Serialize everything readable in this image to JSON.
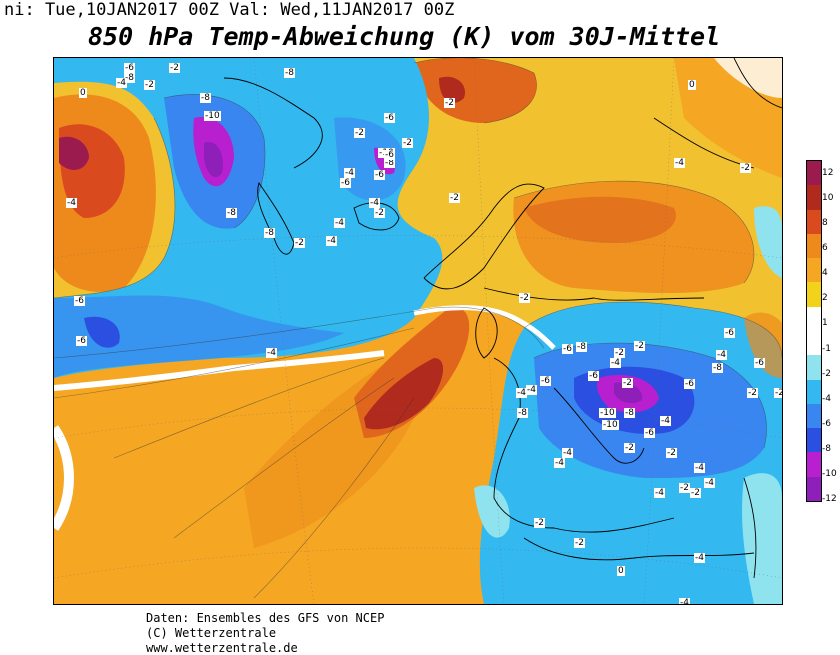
{
  "header": {
    "init_line": "ni: Tue,10JAN2017 00Z  Val: Wed,11JAN2017 00Z",
    "title": "850 hPa Temp-Abweichung (K) vom 30J-Mittel"
  },
  "legend": {
    "ticks": [
      "12",
      "10",
      "8",
      "6",
      "4",
      "2",
      "1",
      "-1",
      "-2",
      "-4",
      "-6",
      "-8",
      "-10",
      "-12"
    ],
    "colors": [
      "#9b1b4e",
      "#b02a1e",
      "#d94a1e",
      "#ee8a1c",
      "#f5a623",
      "#f2d21a",
      "#ffffff",
      "#ffffff",
      "#8fe3ee",
      "#33b8ef",
      "#3a86f0",
      "#2b4fe0",
      "#b81fcf",
      "#8e1fb8"
    ]
  },
  "map": {
    "contour_labels": [
      "-6",
      "-8",
      "-4",
      "-4",
      "-2",
      "-2",
      "0",
      "-8",
      "-10",
      "-8",
      "-6",
      "-4",
      "-2",
      "-2",
      "-4",
      "-6",
      "-10",
      "-8",
      "-6",
      "-6",
      "-2",
      "-8",
      "-8",
      "-4",
      "-2",
      "-2",
      "-6",
      "-4",
      "-2",
      "-4",
      "-6",
      "-2",
      "-4",
      "-6",
      "-6",
      "-8",
      "-6",
      "-2",
      "-4",
      "-2",
      "-2",
      "-4",
      "-6",
      "-8",
      "-4",
      "-6",
      "-6",
      "-2",
      "-4",
      "-8",
      "-10",
      "-10",
      "-8",
      "-6",
      "-2",
      "-4",
      "-4",
      "-2",
      "-4",
      "-2",
      "-4",
      "-4",
      "-2",
      "-2",
      "-2",
      "0",
      "-4",
      "-4",
      "-2",
      "0",
      "-2",
      "-4"
    ]
  },
  "footer": {
    "line1": "Daten: Ensembles des GFS von NCEP",
    "line2": "(C) Wetterzentrale",
    "line3": "www.wetterzentrale.de"
  }
}
